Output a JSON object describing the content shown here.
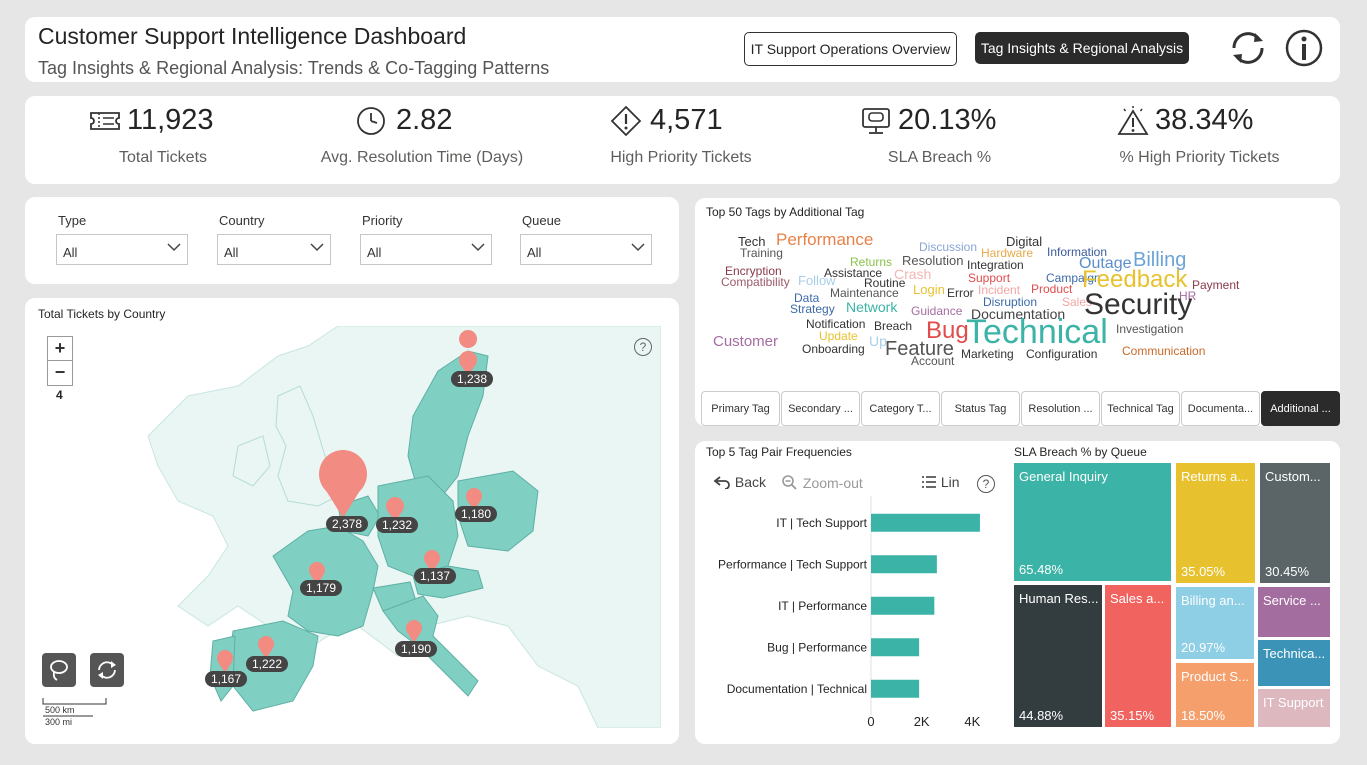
{
  "header": {
    "title": "Customer Support Intelligence Dashboard",
    "subtitle": "Tag Insights & Regional Analysis: Trends & Co-Tagging Patterns",
    "nav": [
      "IT Support Operations Overview",
      "Tag Insights & Regional Analysis"
    ],
    "icons": [
      "refresh-icon",
      "info-icon"
    ]
  },
  "kpis": [
    {
      "value": "11,923",
      "label": "Total Tickets",
      "icon": "ticket-icon"
    },
    {
      "value": "2.82",
      "label": "Avg. Resolution Time (Days)",
      "icon": "clock-icon"
    },
    {
      "value": "4,571",
      "label": "High Priority Tickets",
      "icon": "warning-diamond-icon"
    },
    {
      "value": "20.13%",
      "label": "SLA Breach %",
      "icon": "monitor-alert-icon"
    },
    {
      "value": "38.34%",
      "label": "% High Priority Tickets",
      "icon": "alert-triangle-icon"
    }
  ],
  "filters": [
    {
      "label": "Type",
      "value": "All"
    },
    {
      "label": "Country",
      "value": "All"
    },
    {
      "label": "Priority",
      "value": "All"
    },
    {
      "label": "Queue",
      "value": "All"
    }
  ],
  "map": {
    "title": "Total Tickets by Country",
    "zoom_in": "+",
    "zoom_out": "−",
    "zoom_level": "4",
    "scale_km": "500 km",
    "scale_mi": "300 mi",
    "help": "?",
    "pins": [
      "1,238",
      "2,378",
      "1,232",
      "1,180",
      "1,137",
      "1,179",
      "1,190",
      "1,222",
      "1,167"
    ]
  },
  "wordcloud": {
    "title": "Top 50 Tags by Additional Tag",
    "words": [
      "Tech",
      "Performance",
      "Discussion",
      "Digital",
      "Training",
      "Hardware",
      "Information",
      "Billing",
      "Returns",
      "Resolution",
      "Encryption",
      "Assistance",
      "Crash",
      "Integration",
      "Outage",
      "Compatibility",
      "Follow",
      "Routine",
      "Support",
      "Campaign",
      "Feedback",
      "Payment",
      "Login",
      "Incident",
      "Product",
      "Data",
      "Maintenance",
      "Error",
      "Disruption",
      "Sales",
      "HR",
      "Strategy",
      "Network",
      "Guidance",
      "Documentation",
      "Security",
      "Notification",
      "Breach",
      "Update",
      "Bug",
      "Technical",
      "Investigation",
      "Customer",
      "Up",
      "Feature",
      "Onboarding",
      "Marketing",
      "Configuration",
      "Communication",
      "Account"
    ],
    "tabs": [
      "Primary Tag",
      "Secondary ...",
      "Category T...",
      "Status Tag",
      "Resolution ...",
      "Technical Tag",
      "Documenta...",
      "Additional ..."
    ],
    "active_tab": "Additional ..."
  },
  "bar": {
    "title": "Top 5 Tag Pair Frequencies",
    "back": "Back",
    "zoomout": "Zoom-out",
    "lin": "Lin",
    "help": "?"
  },
  "chart_data": {
    "type": "bar",
    "orientation": "horizontal",
    "title": "Top 5 Tag Pair Frequencies",
    "categories": [
      "IT | Tech Support",
      "Performance | Tech Support",
      "IT | Performance",
      "Bug | Performance",
      "Documentation | Technical"
    ],
    "values": [
      4300,
      2600,
      2500,
      1900,
      1900
    ],
    "xlim": [
      0,
      4500
    ],
    "xticks": [
      "0",
      "2K",
      "4K"
    ],
    "xtick_values": [
      0,
      2000,
      4000
    ],
    "color": "#3bb3a7"
  },
  "treemap": {
    "title": "SLA Breach % by Queue",
    "tiles": [
      {
        "name": "General Inquiry",
        "value": "65.48%",
        "color": "#3bb3a7"
      },
      {
        "name": "Returns a...",
        "value": "35.05%",
        "color": "#e8c22e"
      },
      {
        "name": "Custom...",
        "value": "30.45%",
        "color": "#5b6466"
      },
      {
        "name": "Human Res...",
        "value": "44.88%",
        "color": "#333d40"
      },
      {
        "name": "Sales a...",
        "value": "35.15%",
        "color": "#f1635f"
      },
      {
        "name": "Billing an...",
        "value": "20.97%",
        "color": "#8ecfe6"
      },
      {
        "name": "Service ...",
        "value": "",
        "color": "#a46d9f"
      },
      {
        "name": "Technica...",
        "value": "",
        "color": "#3c93b8"
      },
      {
        "name": "Product S...",
        "value": "18.50%",
        "color": "#f49f6c"
      },
      {
        "name": "IT Support",
        "value": "",
        "color": "#ddb8bf"
      }
    ]
  }
}
